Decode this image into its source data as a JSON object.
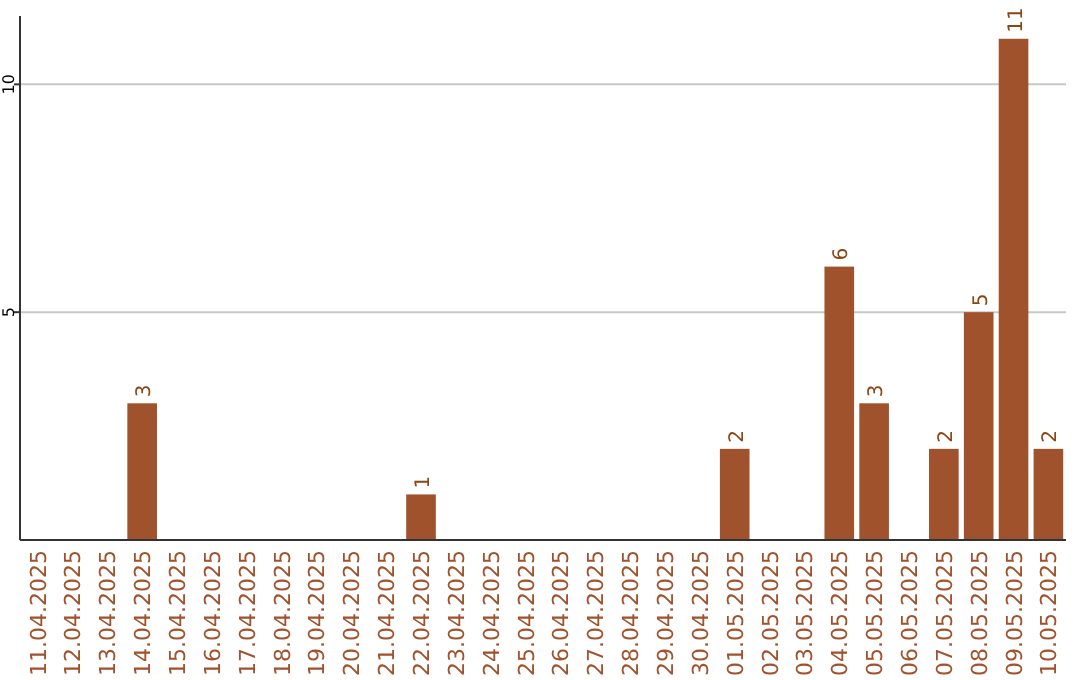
{
  "chart_data": {
    "type": "bar",
    "categories": [
      "11.04.2025",
      "12.04.2025",
      "13.04.2025",
      "14.04.2025",
      "15.04.2025",
      "16.04.2025",
      "17.04.2025",
      "18.04.2025",
      "19.04.2025",
      "20.04.2025",
      "21.04.2025",
      "22.04.2025",
      "23.04.2025",
      "24.04.2025",
      "25.04.2025",
      "26.04.2025",
      "27.04.2025",
      "28.04.2025",
      "29.04.2025",
      "30.04.2025",
      "01.05.2025",
      "02.05.2025",
      "03.05.2025",
      "04.05.2025",
      "05.05.2025",
      "06.05.2025",
      "07.05.2025",
      "08.05.2025",
      "09.05.2025",
      "10.05.2025"
    ],
    "values": [
      0,
      0,
      0,
      3,
      0,
      0,
      0,
      0,
      0,
      0,
      0,
      1,
      0,
      0,
      0,
      0,
      0,
      0,
      0,
      0,
      2,
      0,
      0,
      6,
      3,
      0,
      2,
      5,
      11,
      2
    ],
    "value_labels": [
      null,
      null,
      null,
      "3",
      null,
      null,
      null,
      null,
      null,
      null,
      null,
      "1",
      null,
      null,
      null,
      null,
      null,
      null,
      null,
      null,
      "2",
      null,
      null,
      "6",
      "3",
      null,
      "2",
      "5",
      "11",
      "2"
    ],
    "color": "#a0522d",
    "ylim": [
      0,
      11.5
    ],
    "yticks": [
      5,
      10
    ],
    "grid": "y"
  }
}
